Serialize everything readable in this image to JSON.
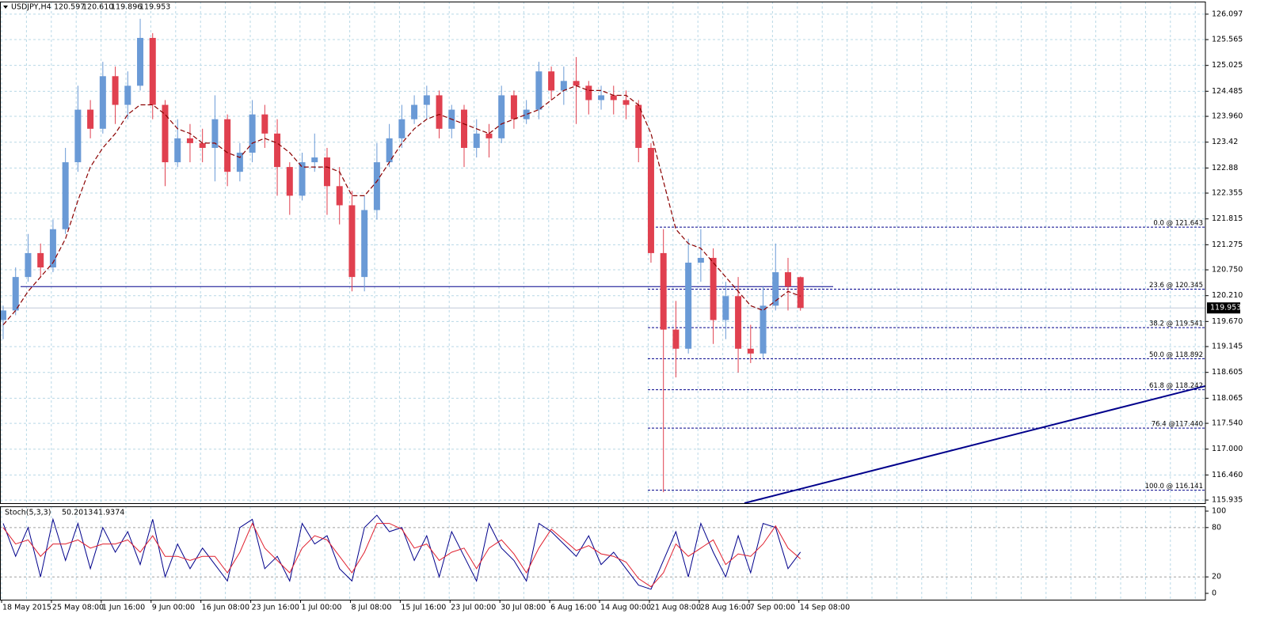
{
  "chart_data": [
    {
      "type": "candlestick",
      "title": "USDJPY,H4",
      "header_labels": {
        "open": "120.597",
        "high": "120.610",
        "low": "119.896",
        "close": "119.953"
      },
      "categories": [
        "18 May 2015",
        null,
        null,
        null,
        "25 May 08:00",
        null,
        null,
        null,
        "1 Jun 16:00",
        null,
        null,
        null,
        "9 Jun 00:00",
        null,
        null,
        null,
        "16 Jun 08:00",
        null,
        null,
        null,
        "23 Jun 16:00",
        null,
        null,
        null,
        "1 Jul 00:00",
        null,
        null,
        null,
        "8 Jul 08:00",
        null,
        null,
        null,
        "15 Jul 16:00",
        null,
        null,
        null,
        "23 Jul 00:00",
        null,
        null,
        null,
        "30 Jul 08:00",
        null,
        null,
        null,
        "6 Aug 16:00",
        null,
        null,
        null,
        "14 Aug 00:00",
        null,
        null,
        null,
        "21 Aug 08:00",
        null,
        null,
        null,
        "28 Aug 16:00",
        null,
        null,
        null,
        "7 Sep 00:00",
        null,
        null,
        null,
        "14 Sep 08:00"
      ],
      "open": [
        119.7,
        119.9,
        120.6,
        121.1,
        120.8,
        121.6,
        123.0,
        124.1,
        123.7,
        124.8,
        124.2,
        124.6,
        125.6,
        124.2,
        123.0,
        123.5,
        123.4,
        123.3,
        123.9,
        122.8,
        123.2,
        124.0,
        123.6,
        122.9,
        122.3,
        123.0,
        123.1,
        122.5,
        122.1,
        120.6,
        122.0,
        123.0,
        123.5,
        123.9,
        124.2,
        124.4,
        123.7,
        124.1,
        123.3,
        123.6,
        123.5,
        124.4,
        123.9,
        124.1,
        124.9,
        124.5,
        124.7,
        124.6,
        124.3,
        124.4,
        124.3,
        124.2,
        123.3,
        121.1,
        119.5,
        119.1,
        120.9,
        121.0,
        119.7,
        120.2,
        119.1,
        119.0,
        120.0,
        120.7,
        120.597
      ],
      "high": [
        120.0,
        120.8,
        121.5,
        121.3,
        121.8,
        123.3,
        124.6,
        124.3,
        125.1,
        125.0,
        124.9,
        126.0,
        125.7,
        124.3,
        123.9,
        123.8,
        123.7,
        124.4,
        124.0,
        123.4,
        124.3,
        124.2,
        123.9,
        123.0,
        123.2,
        123.6,
        123.3,
        122.9,
        122.4,
        122.3,
        123.4,
        123.8,
        124.2,
        124.4,
        124.6,
        124.5,
        124.2,
        124.2,
        123.9,
        123.8,
        124.6,
        124.5,
        124.3,
        125.1,
        125.0,
        125.0,
        125.2,
        124.7,
        124.6,
        124.6,
        124.5,
        124.3,
        123.4,
        121.6,
        120.1,
        121.4,
        121.6,
        121.2,
        120.5,
        120.6,
        119.6,
        120.4,
        121.3,
        121.0,
        120.61
      ],
      "low": [
        119.3,
        119.8,
        120.5,
        120.6,
        120.7,
        121.5,
        122.8,
        123.5,
        123.6,
        123.8,
        123.9,
        124.5,
        123.9,
        122.5,
        122.9,
        123.0,
        123.0,
        122.6,
        122.5,
        122.6,
        123.0,
        123.3,
        122.3,
        121.9,
        122.2,
        122.8,
        121.9,
        121.7,
        120.3,
        120.3,
        121.8,
        122.9,
        123.3,
        123.8,
        123.9,
        123.5,
        123.5,
        122.9,
        123.1,
        123.1,
        123.4,
        123.7,
        123.8,
        123.9,
        124.3,
        124.2,
        123.8,
        124.0,
        124.1,
        124.0,
        123.9,
        123.0,
        120.9,
        116.1,
        118.5,
        119.0,
        120.5,
        119.2,
        119.3,
        118.6,
        118.8,
        118.9,
        119.9,
        119.9,
        119.896
      ],
      "close": [
        119.9,
        120.6,
        121.1,
        120.8,
        121.6,
        123.0,
        124.1,
        123.7,
        124.8,
        124.2,
        124.6,
        125.6,
        124.2,
        123.0,
        123.5,
        123.4,
        123.3,
        123.9,
        122.8,
        123.2,
        124.0,
        123.6,
        122.9,
        122.3,
        123.0,
        123.1,
        122.5,
        122.1,
        120.6,
        122.0,
        123.0,
        123.5,
        123.9,
        124.2,
        124.4,
        123.7,
        124.1,
        123.3,
        123.6,
        123.5,
        124.4,
        123.9,
        124.1,
        124.9,
        124.5,
        124.7,
        124.6,
        124.3,
        124.4,
        124.3,
        124.2,
        123.3,
        121.1,
        119.5,
        119.1,
        120.9,
        121.0,
        119.7,
        120.2,
        119.1,
        119.0,
        120.0,
        120.7,
        120.4,
        119.953
      ],
      "up_color": "#6a9ad6",
      "down_color": "#e0404f",
      "ma": {
        "color": "#8b0000",
        "values": [
          119.6,
          119.9,
          120.3,
          120.6,
          120.9,
          121.4,
          122.2,
          122.9,
          123.3,
          123.6,
          124.0,
          124.2,
          124.2,
          124.0,
          123.7,
          123.6,
          123.4,
          123.4,
          123.2,
          123.1,
          123.4,
          123.5,
          123.4,
          123.2,
          122.9,
          122.9,
          122.9,
          122.8,
          122.3,
          122.3,
          122.6,
          123.0,
          123.4,
          123.7,
          123.9,
          124.0,
          123.9,
          123.8,
          123.7,
          123.6,
          123.8,
          123.9,
          124.0,
          124.1,
          124.3,
          124.5,
          124.6,
          124.5,
          124.5,
          124.4,
          124.4,
          124.2,
          123.6,
          122.6,
          121.6,
          121.3,
          121.2,
          120.9,
          120.6,
          120.3,
          120.0,
          119.9,
          120.1,
          120.3,
          120.2
        ]
      },
      "hline": 120.4,
      "fibonacci": {
        "color": "#00008b",
        "levels": [
          {
            "value": 121.643,
            "label": "0.0 @ 121.643"
          },
          {
            "value": 120.345,
            "label": "23.6 @ 120.345"
          },
          {
            "value": 119.541,
            "label": "38.2 @ 119.541"
          },
          {
            "value": 118.892,
            "label": "50.0 @ 118.892"
          },
          {
            "value": 118.242,
            "label": "61.8 @ 118.242"
          },
          {
            "value": 117.44,
            "label": "76.4 @117.440"
          },
          {
            "value": 116.141,
            "label": "100.0 @ 116.141"
          }
        ]
      },
      "trendline": {
        "color": "#00008b",
        "x": [
          59.5,
          96.5
        ],
        "values": [
          115.87,
          118.32
        ]
      },
      "ylim": [
        115.87,
        126.36
      ],
      "yticks": [
        126.097,
        125.565,
        125.025,
        124.485,
        {
          "value": 123.96,
          "label": "123.960"
        },
        123.42,
        122.88,
        122.355,
        121.815,
        121.275,
        {
          "value": 120.75,
          "label": "120.750"
        },
        {
          "value": 120.21,
          "label": "120.210"
        },
        {
          "value": 119.67,
          "label": "119.670"
        },
        119.145,
        118.605,
        118.065,
        {
          "value": 117.54,
          "label": "117.540"
        },
        {
          "value": 117.0,
          "label": "117.000"
        },
        {
          "value": 116.46,
          "label": "116.460"
        },
        115.935
      ],
      "grid": true
    },
    {
      "type": "line",
      "title": "Stoch(5,3,3)",
      "series": [
        {
          "color": "#00008b",
          "values": [
            85,
            45,
            80,
            20,
            90,
            40,
            85,
            30,
            80,
            50,
            75,
            35,
            90,
            20,
            60,
            30,
            55,
            35,
            15,
            80,
            90,
            30,
            45,
            15,
            85,
            60,
            70,
            30,
            15,
            80,
            95,
            75,
            80,
            40,
            70,
            20,
            75,
            45,
            15,
            85,
            55,
            40,
            15,
            85,
            75,
            60,
            45,
            70,
            35,
            50,
            30,
            10,
            5,
            40,
            75,
            20,
            85,
            50,
            20,
            70,
            25,
            85,
            80,
            30,
            50.2013
          ]
        },
        {
          "color": "#e0202f",
          "values": [
            80,
            60,
            65,
            45,
            60,
            60,
            65,
            55,
            60,
            60,
            65,
            50,
            70,
            45,
            45,
            40,
            45,
            45,
            25,
            50,
            85,
            55,
            40,
            25,
            55,
            70,
            65,
            45,
            25,
            50,
            85,
            85,
            78,
            55,
            60,
            40,
            50,
            55,
            30,
            55,
            65,
            48,
            25,
            55,
            78,
            65,
            52,
            58,
            48,
            45,
            38,
            18,
            8,
            25,
            60,
            45,
            55,
            65,
            35,
            48,
            45,
            60,
            82,
            55,
            41.9374
          ]
        }
      ],
      "levels": [
        20,
        80
      ],
      "ylim": [
        -7.7,
        105.8
      ],
      "yticks": [
        0,
        20,
        80,
        100
      ]
    }
  ]
}
